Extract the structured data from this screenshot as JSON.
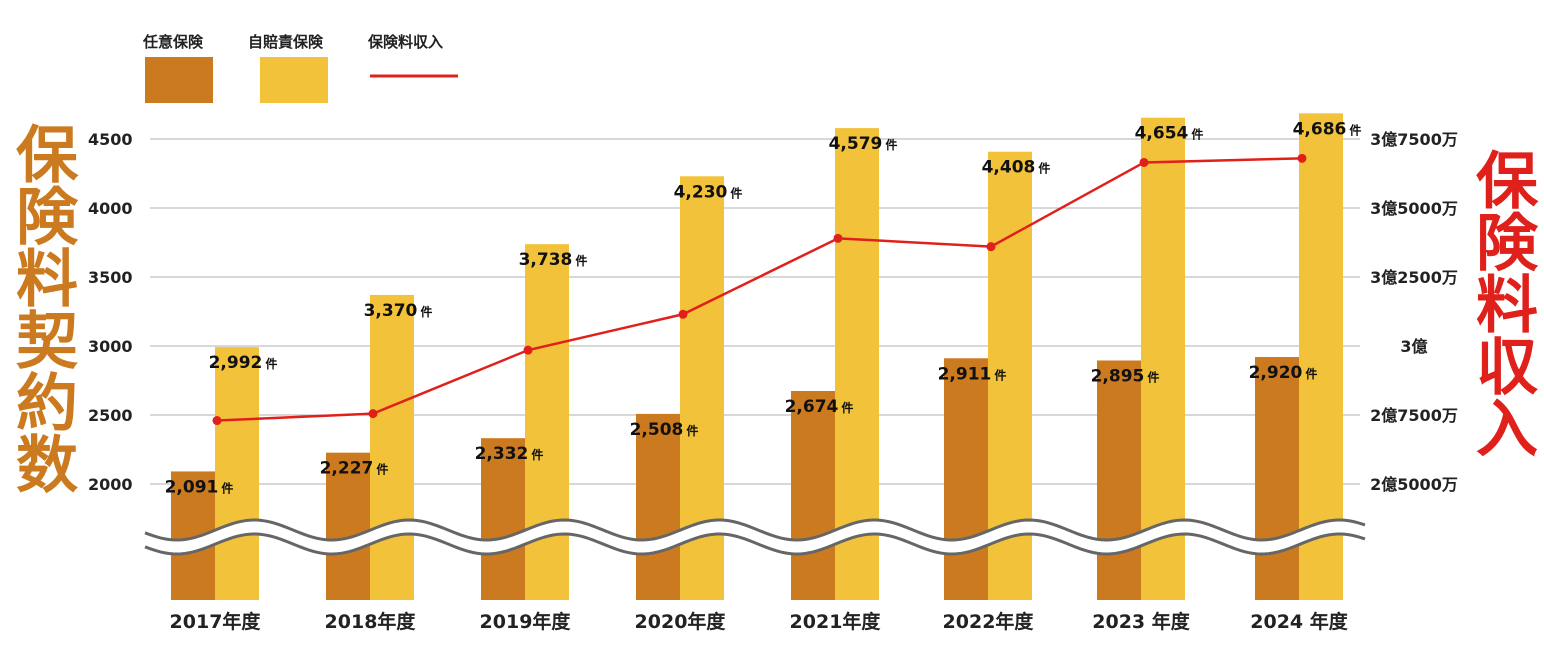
{
  "legend": {
    "optional": "任意保険",
    "compulsory": "自賠責保険",
    "premium": "保険料収入"
  },
  "titles": {
    "left": "保険料契約数",
    "right": "保険料収入"
  },
  "colors": {
    "optional": "#cc7a1f",
    "compulsory": "#f2c23a",
    "premium": "#e0201a",
    "grid": "#b0b0b0"
  },
  "chart_data": {
    "type": "bar",
    "categories": [
      "2017年度",
      "2018年度",
      "2019年度",
      "2020年度",
      "2021年度",
      "2022年度",
      "2023 年度",
      "2024 年度"
    ],
    "series": [
      {
        "name": "任意保険",
        "values": [
          2091,
          2227,
          2332,
          2508,
          2674,
          2911,
          2895,
          2920
        ],
        "labels": [
          "2,091",
          "2,227",
          "2,332",
          "2,508",
          "2,674",
          "2,911",
          "2,895",
          "2,920"
        ]
      },
      {
        "name": "自賠責保険",
        "values": [
          2992,
          3370,
          3738,
          4230,
          4579,
          4408,
          4654,
          4686
        ],
        "labels": [
          "2,992",
          "3,370",
          "3,738",
          "4,230",
          "4,579",
          "4,408",
          "4,654",
          "4,686"
        ]
      },
      {
        "name": "保険料収入",
        "type": "line",
        "values": [
          273000000,
          275500000,
          298500000,
          311500000,
          339000000,
          336000000,
          366500000,
          368000000
        ]
      }
    ],
    "count_unit": "件",
    "left_axis": {
      "ticks": [
        2000,
        2500,
        3000,
        3500,
        4000,
        4500
      ],
      "tick_labels": [
        "2000",
        "2500",
        "3000",
        "3500",
        "4000",
        "4500"
      ]
    },
    "right_axis": {
      "ticks": [
        250000000,
        275000000,
        300000000,
        325000000,
        350000000,
        375000000
      ],
      "tick_labels": [
        "2億5000万",
        "2億7500万",
        "3億",
        "3億2500万",
        "3億5000万",
        "3億7500万"
      ]
    },
    "axis_break": true,
    "grid": true,
    "legend_position": "top-left"
  }
}
